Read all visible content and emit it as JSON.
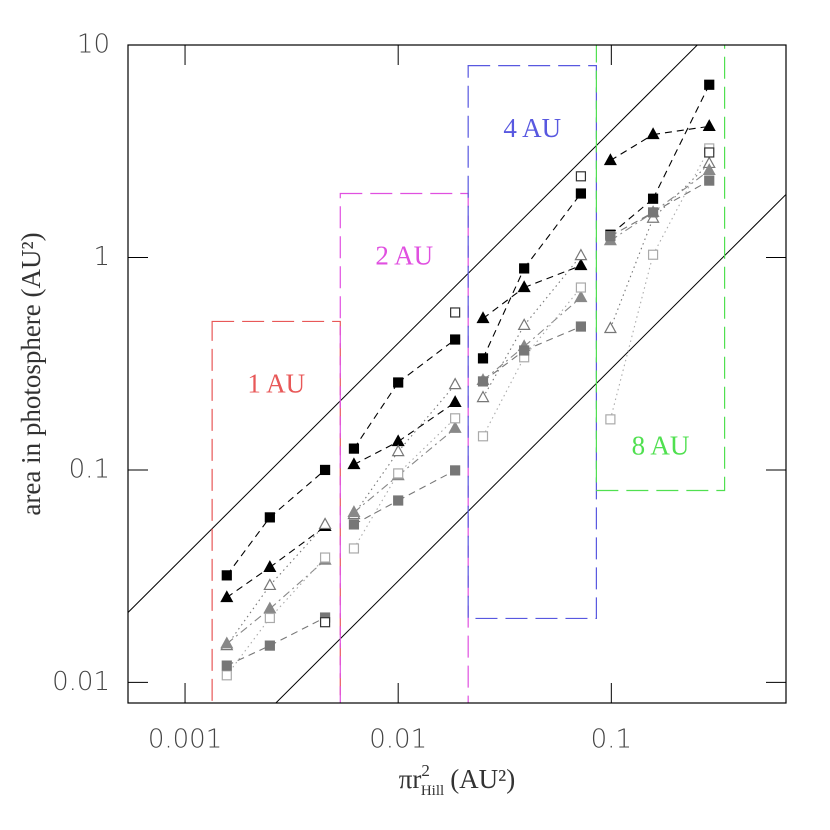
{
  "chart_data": {
    "type": "scatter",
    "log_x": true,
    "log_y": true,
    "xlabel": {
      "base": "πr",
      "sup": "2",
      "sub": "Hill",
      "unit": "(AU²)"
    },
    "ylabel": "area in photosphere (AU²)",
    "xlim": [
      0.00054,
      0.66
    ],
    "ylim": [
      0.008,
      10
    ],
    "xticks": [
      0.001,
      0.01,
      0.1
    ],
    "yticks": [
      0.01,
      0.1,
      1,
      10
    ],
    "x": [
      0.00157,
      0.0025,
      0.00454,
      0.0062,
      0.01,
      0.0185,
      0.025,
      0.039,
      0.072,
      0.099,
      0.157,
      0.288
    ],
    "series": [
      {
        "color": "#000000",
        "marker": "square",
        "filled": true,
        "dash": "dashed",
        "values": [
          0.0319,
          0.0598,
          0.1,
          0.126,
          0.258,
          0.411,
          0.335,
          0.888,
          2.0,
          1.28,
          1.89,
          6.5
        ]
      },
      {
        "color": "#000000",
        "marker": "triangle",
        "filled": true,
        "dash": "dashed",
        "values": [
          0.0251,
          0.0348,
          0.0542,
          0.106,
          0.136,
          0.208,
          0.516,
          0.722,
          0.916,
          2.86,
          3.79,
          4.14
        ]
      },
      {
        "color": "#777777",
        "marker": "triangle",
        "filled": false,
        "dash": "dotted",
        "values": [
          0.0149,
          0.0286,
          0.0554,
          0.0617,
          0.122,
          0.252,
          0.219,
          0.479,
          1.02,
          0.463,
          1.53,
          2.77
        ]
      },
      {
        "color": "#888888",
        "marker": "triangle",
        "filled": true,
        "dash": "dashdot",
        "values": [
          0.0152,
          0.0222,
          0.0376,
          0.0631,
          0.094,
          0.157,
          0.264,
          0.381,
          0.648,
          1.2,
          1.63,
          2.57
        ]
      },
      {
        "color": "#aaaaaa",
        "marker": "square",
        "filled": false,
        "dash": "dotted",
        "values": [
          0.0108,
          0.0201,
          0.0387,
          0.0427,
          0.0963,
          0.175,
          0.144,
          0.339,
          0.722,
          0.173,
          1.03,
          3.26
        ]
      },
      {
        "color": "#777777",
        "marker": "square",
        "filled": true,
        "dash": "dashed",
        "values": [
          0.012,
          0.0149,
          0.0202,
          0.0554,
          0.0718,
          0.0995,
          0.261,
          0.365,
          0.473,
          1.26,
          1.63,
          2.3
        ]
      },
      {
        "color": "#333333",
        "marker": "square",
        "filled": false,
        "dash": "dashed",
        "values": [
          null,
          null,
          0.0192,
          null,
          null,
          0.551,
          null,
          null,
          2.41,
          null,
          null,
          3.12
        ]
      }
    ],
    "regions": [
      {
        "label": "1 AU",
        "color": "#e85858",
        "xlim": [
          0.00134,
          0.00535
        ],
        "ylim": [
          null,
          0.5
        ],
        "label_at": "top"
      },
      {
        "label": "2 AU",
        "color": "#e050e0",
        "xlim": [
          0.00535,
          0.0213
        ],
        "ylim": [
          null,
          2.0
        ],
        "label_at": "top"
      },
      {
        "label": "4 AU",
        "color": "#5858e0",
        "xlim": [
          0.0213,
          0.0851
        ],
        "ylim": [
          0.02,
          8.0
        ],
        "label_at": "top"
      },
      {
        "label": "8 AU",
        "color": "#50e050",
        "xlim": [
          0.0851,
          0.34
        ],
        "ylim": [
          0.08,
          null
        ],
        "label_at": "bottom"
      }
    ],
    "reference_lines": [
      {
        "ratio": 39.5
      },
      {
        "ratio": 3
      }
    ]
  }
}
